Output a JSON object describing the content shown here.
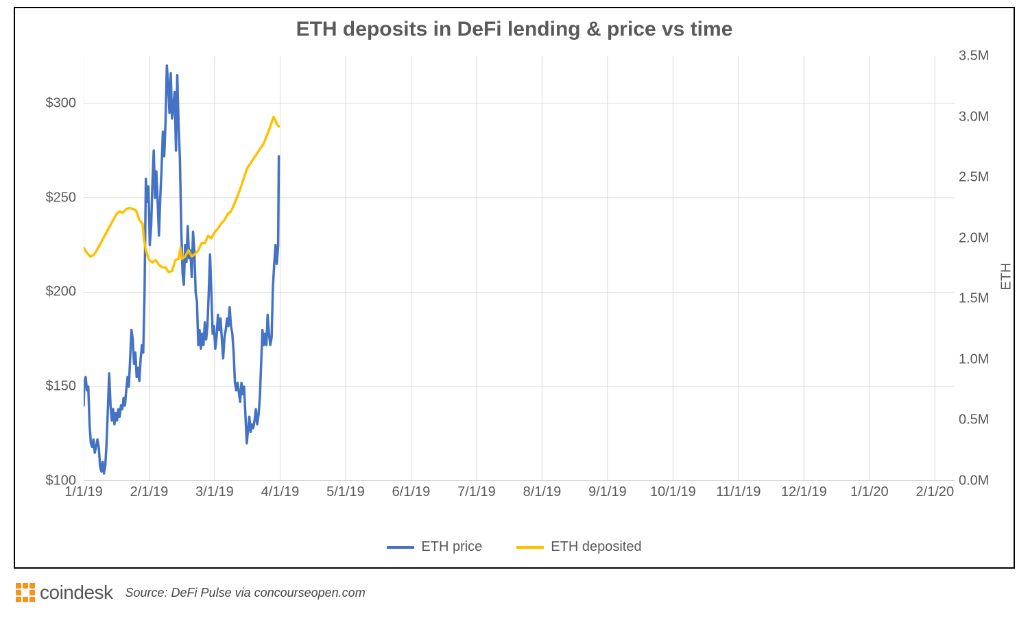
{
  "chart": {
    "type": "line-dual-axis",
    "title": "ETH deposits in DeFi lending & price vs time",
    "title_fontsize": 30,
    "title_color": "#595959",
    "background_color": "#ffffff",
    "border_color": "#000000",
    "grid_color": "#d9d9d9",
    "axis_color": "#bfbfbf",
    "label_color": "#595959",
    "label_fontsize": 20,
    "line_width": 3.5,
    "x": {
      "ticks": [
        "1/1/19",
        "2/1/19",
        "3/1/19",
        "4/1/19",
        "5/1/19",
        "6/1/19",
        "7/1/19",
        "8/1/19",
        "9/1/19",
        "10/1/19",
        "11/1/19",
        "12/1/19",
        "1/1/20",
        "2/1/20"
      ]
    },
    "y_left": {
      "min": 100,
      "max": 325,
      "tick_step": 50,
      "ticks": [
        100,
        150,
        200,
        250,
        300
      ],
      "tick_labels": [
        "$100",
        "$150",
        "$200",
        "$250",
        "$300"
      ],
      "prefix": "$"
    },
    "y_right": {
      "title": "ETH",
      "min": 0,
      "max": 3.5,
      "tick_step": 0.5,
      "ticks": [
        0,
        0.5,
        1.0,
        1.5,
        2.0,
        2.5,
        3.0,
        3.5
      ],
      "tick_labels": [
        "0.0M",
        "0.5M",
        "1.0M",
        "1.5M",
        "2.0M",
        "2.5M",
        "3.0M",
        "3.5M"
      ],
      "suffix": "M"
    },
    "legend": {
      "position": "bottom-center",
      "items": [
        {
          "label": "ETH price",
          "color": "#4472c4"
        },
        {
          "label": "ETH deposited",
          "color": "#ffc000"
        }
      ]
    },
    "series": [
      {
        "name": "ETH price",
        "axis": "left",
        "color": "#4472c4",
        "data": [
          [
            0.0,
            140
          ],
          [
            0.01,
            152
          ],
          [
            0.03,
            155
          ],
          [
            0.05,
            148
          ],
          [
            0.07,
            150
          ],
          [
            0.09,
            130
          ],
          [
            0.11,
            120
          ],
          [
            0.13,
            118
          ],
          [
            0.15,
            122
          ],
          [
            0.17,
            115
          ],
          [
            0.19,
            118
          ],
          [
            0.21,
            122
          ],
          [
            0.23,
            118
          ],
          [
            0.25,
            108
          ],
          [
            0.27,
            105
          ],
          [
            0.29,
            110
          ],
          [
            0.31,
            104
          ],
          [
            0.33,
            108
          ],
          [
            0.35,
            120
          ],
          [
            0.37,
            138
          ],
          [
            0.39,
            157
          ],
          [
            0.41,
            140
          ],
          [
            0.43,
            132
          ],
          [
            0.45,
            138
          ],
          [
            0.47,
            130
          ],
          [
            0.49,
            136
          ],
          [
            0.51,
            132
          ],
          [
            0.53,
            138
          ],
          [
            0.55,
            134
          ],
          [
            0.57,
            140
          ],
          [
            0.59,
            138
          ],
          [
            0.61,
            144
          ],
          [
            0.63,
            140
          ],
          [
            0.65,
            148
          ],
          [
            0.67,
            155
          ],
          [
            0.69,
            150
          ],
          [
            0.71,
            165
          ],
          [
            0.73,
            180
          ],
          [
            0.75,
            175
          ],
          [
            0.77,
            162
          ],
          [
            0.79,
            168
          ],
          [
            0.81,
            155
          ],
          [
            0.83,
            160
          ],
          [
            0.85,
            153
          ],
          [
            0.87,
            165
          ],
          [
            0.89,
            172
          ],
          [
            0.91,
            168
          ],
          [
            0.93,
            200
          ],
          [
            0.95,
            260
          ],
          [
            0.97,
            248
          ],
          [
            0.99,
            256
          ],
          [
            1.01,
            225
          ],
          [
            1.03,
            235
          ],
          [
            1.05,
            258
          ],
          [
            1.07,
            275
          ],
          [
            1.09,
            250
          ],
          [
            1.11,
            264
          ],
          [
            1.13,
            248
          ],
          [
            1.15,
            230
          ],
          [
            1.17,
            250
          ],
          [
            1.19,
            265
          ],
          [
            1.21,
            285
          ],
          [
            1.23,
            272
          ],
          [
            1.25,
            290
          ],
          [
            1.27,
            320
          ],
          [
            1.29,
            310
          ],
          [
            1.31,
            295
          ],
          [
            1.33,
            316
          ],
          [
            1.35,
            292
          ],
          [
            1.37,
            298
          ],
          [
            1.39,
            306
          ],
          [
            1.41,
            275
          ],
          [
            1.43,
            315
          ],
          [
            1.45,
            288
          ],
          [
            1.47,
            270
          ],
          [
            1.49,
            234
          ],
          [
            1.51,
            210
          ],
          [
            1.53,
            204
          ],
          [
            1.55,
            225
          ],
          [
            1.57,
            216
          ],
          [
            1.59,
            235
          ],
          [
            1.61,
            218
          ],
          [
            1.63,
            222
          ],
          [
            1.65,
            208
          ],
          [
            1.67,
            232
          ],
          [
            1.69,
            222
          ],
          [
            1.71,
            200
          ],
          [
            1.73,
            195
          ],
          [
            1.75,
            172
          ],
          [
            1.77,
            180
          ],
          [
            1.79,
            170
          ],
          [
            1.81,
            178
          ],
          [
            1.83,
            172
          ],
          [
            1.85,
            184
          ],
          [
            1.87,
            175
          ],
          [
            1.89,
            182
          ],
          [
            1.91,
            200
          ],
          [
            1.93,
            220
          ],
          [
            1.95,
            200
          ],
          [
            1.97,
            178
          ],
          [
            1.99,
            182
          ],
          [
            2.01,
            170
          ],
          [
            2.03,
            176
          ],
          [
            2.05,
            188
          ],
          [
            2.07,
            180
          ],
          [
            2.09,
            186
          ],
          [
            2.11,
            175
          ],
          [
            2.13,
            165
          ],
          [
            2.15,
            176
          ],
          [
            2.17,
            180
          ],
          [
            2.19,
            186
          ],
          [
            2.21,
            182
          ],
          [
            2.23,
            192
          ],
          [
            2.25,
            182
          ],
          [
            2.27,
            178
          ],
          [
            2.29,
            168
          ],
          [
            2.31,
            152
          ],
          [
            2.33,
            148
          ],
          [
            2.35,
            152
          ],
          [
            2.37,
            147
          ],
          [
            2.39,
            142
          ],
          [
            2.41,
            152
          ],
          [
            2.43,
            146
          ],
          [
            2.45,
            150
          ],
          [
            2.47,
            135
          ],
          [
            2.49,
            120
          ],
          [
            2.51,
            127
          ],
          [
            2.53,
            134
          ],
          [
            2.55,
            126
          ],
          [
            2.57,
            130
          ],
          [
            2.59,
            128
          ],
          [
            2.61,
            132
          ],
          [
            2.63,
            138
          ],
          [
            2.65,
            130
          ],
          [
            2.67,
            135
          ],
          [
            2.69,
            144
          ],
          [
            2.71,
            162
          ],
          [
            2.73,
            180
          ],
          [
            2.75,
            172
          ],
          [
            2.77,
            178
          ],
          [
            2.79,
            172
          ],
          [
            2.81,
            188
          ],
          [
            2.83,
            178
          ],
          [
            2.85,
            172
          ],
          [
            2.87,
            176
          ],
          [
            2.89,
            203
          ],
          [
            2.91,
            215
          ],
          [
            2.93,
            225
          ],
          [
            2.95,
            215
          ],
          [
            2.97,
            225
          ],
          [
            2.98,
            272
          ]
        ]
      },
      {
        "name": "ETH deposited",
        "axis": "right",
        "color": "#ffc000",
        "data": [
          [
            0.0,
            1.92
          ],
          [
            0.05,
            1.88
          ],
          [
            0.1,
            1.85
          ],
          [
            0.15,
            1.86
          ],
          [
            0.2,
            1.9
          ],
          [
            0.25,
            1.95
          ],
          [
            0.3,
            2.0
          ],
          [
            0.35,
            2.05
          ],
          [
            0.4,
            2.1
          ],
          [
            0.45,
            2.15
          ],
          [
            0.5,
            2.2
          ],
          [
            0.55,
            2.22
          ],
          [
            0.6,
            2.21
          ],
          [
            0.65,
            2.24
          ],
          [
            0.7,
            2.25
          ],
          [
            0.75,
            2.24
          ],
          [
            0.8,
            2.23
          ],
          [
            0.85,
            2.15
          ],
          [
            0.9,
            2.12
          ],
          [
            0.92,
            2.0
          ],
          [
            0.95,
            1.9
          ],
          [
            1.0,
            1.82
          ],
          [
            1.05,
            1.8
          ],
          [
            1.1,
            1.82
          ],
          [
            1.15,
            1.78
          ],
          [
            1.2,
            1.76
          ],
          [
            1.25,
            1.76
          ],
          [
            1.3,
            1.72
          ],
          [
            1.35,
            1.73
          ],
          [
            1.4,
            1.82
          ],
          [
            1.45,
            1.83
          ],
          [
            1.48,
            1.92
          ],
          [
            1.5,
            1.83
          ],
          [
            1.55,
            1.85
          ],
          [
            1.6,
            1.9
          ],
          [
            1.65,
            1.85
          ],
          [
            1.7,
            1.87
          ],
          [
            1.75,
            1.9
          ],
          [
            1.8,
            1.96
          ],
          [
            1.85,
            1.96
          ],
          [
            1.9,
            2.02
          ],
          [
            1.95,
            2.0
          ],
          [
            2.0,
            2.05
          ],
          [
            2.05,
            2.08
          ],
          [
            2.1,
            2.12
          ],
          [
            2.15,
            2.15
          ],
          [
            2.2,
            2.2
          ],
          [
            2.25,
            2.22
          ],
          [
            2.3,
            2.28
          ],
          [
            2.35,
            2.35
          ],
          [
            2.4,
            2.42
          ],
          [
            2.45,
            2.5
          ],
          [
            2.5,
            2.58
          ],
          [
            2.55,
            2.62
          ],
          [
            2.6,
            2.66
          ],
          [
            2.65,
            2.7
          ],
          [
            2.7,
            2.74
          ],
          [
            2.75,
            2.78
          ],
          [
            2.8,
            2.85
          ],
          [
            2.85,
            2.92
          ],
          [
            2.9,
            3.0
          ],
          [
            2.93,
            2.97
          ],
          [
            2.95,
            2.94
          ],
          [
            2.98,
            2.92
          ]
        ]
      }
    ]
  },
  "footer": {
    "logo_text": "coindesk",
    "logo_color": "#f7931a",
    "source": "Source: DeFi Pulse via concourseopen.com"
  }
}
